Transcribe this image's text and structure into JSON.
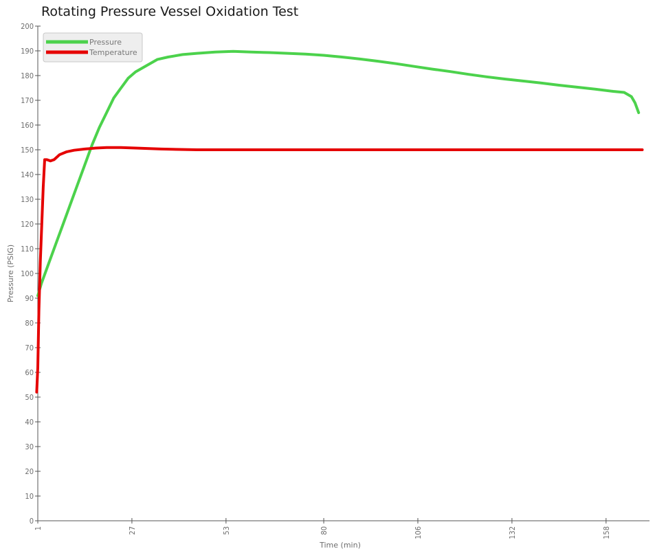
{
  "chart_data": {
    "type": "line",
    "title": "Rotating Pressure Vessel Oxidation Test",
    "xlabel": "Time (min)",
    "ylabel": "Pressure (PSIG)",
    "xlim": [
      1,
      170
    ],
    "ylim": [
      0,
      200
    ],
    "x_ticks": [
      "1",
      "27",
      "53",
      "80",
      "106",
      "132",
      "158"
    ],
    "y_ticks": [
      0,
      10,
      20,
      30,
      40,
      50,
      60,
      70,
      80,
      90,
      100,
      110,
      120,
      130,
      140,
      150,
      160,
      170,
      180,
      190,
      200
    ],
    "grid": false,
    "legend_position": "top-left",
    "series": [
      {
        "name": "Pressure",
        "color": "#4cd24c",
        "points": [
          [
            1,
            91
          ],
          [
            2,
            96
          ],
          [
            4,
            104
          ],
          [
            6,
            112
          ],
          [
            8,
            120
          ],
          [
            10,
            128
          ],
          [
            12,
            136
          ],
          [
            14,
            144
          ],
          [
            16,
            152
          ],
          [
            18,
            159
          ],
          [
            20,
            165
          ],
          [
            22,
            171
          ],
          [
            24,
            175
          ],
          [
            26,
            179
          ],
          [
            28,
            181.5
          ],
          [
            31,
            184
          ],
          [
            34,
            186.5
          ],
          [
            37,
            187.5
          ],
          [
            41,
            188.5
          ],
          [
            45,
            189
          ],
          [
            50,
            189.5
          ],
          [
            55,
            189.8
          ],
          [
            60,
            189.5
          ],
          [
            65,
            189.3
          ],
          [
            70,
            189.0
          ],
          [
            75,
            188.7
          ],
          [
            80,
            188.2
          ],
          [
            85,
            187.5
          ],
          [
            90,
            186.7
          ],
          [
            95,
            185.8
          ],
          [
            100,
            184.8
          ],
          [
            105,
            183.7
          ],
          [
            110,
            182.6
          ],
          [
            115,
            181.6
          ],
          [
            120,
            180.5
          ],
          [
            125,
            179.5
          ],
          [
            130,
            178.6
          ],
          [
            135,
            177.8
          ],
          [
            140,
            177.0
          ],
          [
            145,
            176.1
          ],
          [
            150,
            175.3
          ],
          [
            155,
            174.5
          ],
          [
            160,
            173.6
          ],
          [
            163,
            173.2
          ],
          [
            165,
            171.5
          ],
          [
            166,
            169
          ],
          [
            167,
            165
          ]
        ]
      },
      {
        "name": "Temperature",
        "color": "#e50000",
        "points": [
          [
            0.7,
            52
          ],
          [
            1,
            62
          ],
          [
            1.3,
            85
          ],
          [
            1.7,
            105
          ],
          [
            2.1,
            120
          ],
          [
            2.5,
            135
          ],
          [
            2.9,
            146
          ],
          [
            3.5,
            146
          ],
          [
            4.5,
            145.5
          ],
          [
            5.5,
            146
          ],
          [
            7,
            148
          ],
          [
            9,
            149.2
          ],
          [
            11,
            149.8
          ],
          [
            14,
            150.3
          ],
          [
            17,
            150.7
          ],
          [
            20,
            150.9
          ],
          [
            24,
            150.9
          ],
          [
            28,
            150.7
          ],
          [
            35,
            150.3
          ],
          [
            45,
            150.0
          ],
          [
            60,
            150
          ],
          [
            80,
            150
          ],
          [
            100,
            150
          ],
          [
            120,
            150
          ],
          [
            140,
            150
          ],
          [
            160,
            150
          ],
          [
            168,
            150
          ]
        ]
      }
    ]
  }
}
